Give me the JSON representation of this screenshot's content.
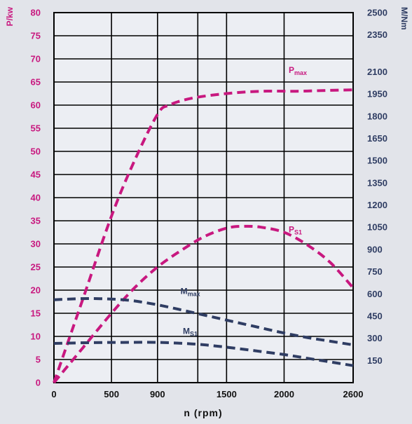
{
  "chart_data": {
    "type": "line",
    "xlabel": "n (rpm)",
    "ylabel_left": "P/kw",
    "ylabel_right": "M/Nm",
    "x_ticks": [
      0,
      500,
      900,
      1500,
      2000,
      2600
    ],
    "x_tick_labels": [
      "0",
      "500",
      "900",
      "1500",
      "2000",
      "2600"
    ],
    "xlim": [
      0,
      2600
    ],
    "ylim_left": [
      0,
      80
    ],
    "y_ticks_left": [
      0,
      5,
      10,
      15,
      20,
      25,
      30,
      35,
      40,
      45,
      50,
      55,
      60,
      65,
      70,
      75,
      80
    ],
    "ylim_right": [
      0,
      2500
    ],
    "y_ticks_right": [
      150,
      300,
      450,
      600,
      750,
      900,
      1050,
      1200,
      1350,
      1500,
      1650,
      1800,
      1950,
      2100,
      2350,
      2500
    ],
    "grid": true,
    "colors": {
      "power": "#c8187f",
      "torque": "#2f3d63",
      "grid": "#000000"
    },
    "series": [
      {
        "name": "Pmax",
        "label_main": "P",
        "label_sub": "max",
        "axis": "left",
        "x": [
          0,
          250,
          500,
          700,
          900,
          1000,
          1200,
          1500,
          1800,
          2100,
          2400,
          2600
        ],
        "y": [
          0,
          18,
          36,
          48,
          58,
          60,
          61.5,
          62.5,
          63,
          63,
          63.2,
          63.3
        ]
      },
      {
        "name": "PS1",
        "label_main": "P",
        "label_sub": "S1",
        "axis": "left",
        "x": [
          0,
          250,
          500,
          700,
          900,
          1100,
          1300,
          1500,
          1650,
          1800,
          2000,
          2200,
          2400,
          2600
        ],
        "y": [
          0,
          7.5,
          15,
          20.5,
          25,
          28.5,
          31.5,
          33.4,
          33.8,
          33.6,
          32.5,
          29.8,
          26,
          20.5
        ]
      },
      {
        "name": "Mmax",
        "label_main": "M",
        "label_sub": "max",
        "axis": "right",
        "x": [
          0,
          300,
          600,
          800,
          1000,
          1200,
          1400,
          1600,
          1800,
          2000,
          2200,
          2400,
          2600
        ],
        "y": [
          560,
          568,
          560,
          540,
          510,
          475,
          440,
          405,
          370,
          335,
          305,
          280,
          255
        ]
      },
      {
        "name": "MS1",
        "label_main": "M",
        "label_sub": "S1",
        "axis": "right",
        "x": [
          0,
          300,
          600,
          900,
          1200,
          1400,
          1600,
          1800,
          2000,
          2200,
          2400,
          2600
        ],
        "y": [
          265,
          270,
          272,
          272,
          262,
          248,
          230,
          210,
          190,
          165,
          140,
          115
        ]
      }
    ]
  }
}
